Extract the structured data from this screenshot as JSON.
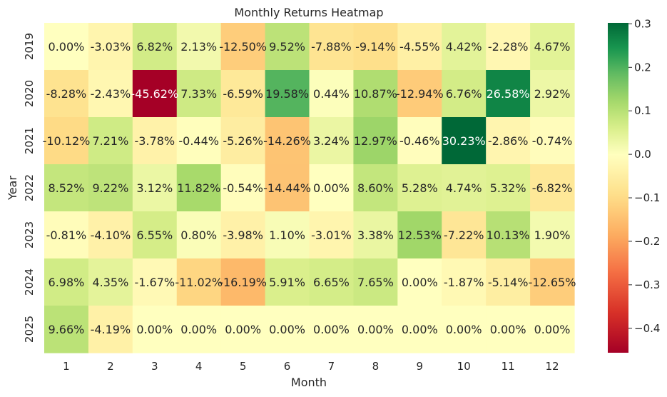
{
  "chart_data": {
    "type": "heatmap",
    "title": "Monthly Returns Heatmap",
    "xlabel": "Month",
    "ylabel": "Year",
    "x_categories": [
      "1",
      "2",
      "3",
      "4",
      "5",
      "6",
      "7",
      "8",
      "9",
      "10",
      "11",
      "12"
    ],
    "y_categories": [
      "2019",
      "2020",
      "2021",
      "2022",
      "2023",
      "2024",
      "2025"
    ],
    "values": [
      [
        0.0,
        -0.0303,
        0.0682,
        0.0213,
        -0.125,
        0.0952,
        -0.0788,
        -0.0914,
        -0.0455,
        0.0442,
        -0.0228,
        0.0467
      ],
      [
        -0.0828,
        -0.0243,
        -0.4562,
        0.0733,
        -0.0659,
        0.1958,
        0.0044,
        0.1087,
        -0.1294,
        0.0676,
        0.2658,
        0.0292
      ],
      [
        -0.1012,
        0.0721,
        -0.0378,
        -0.0044,
        -0.0526,
        -0.1426,
        0.0324,
        0.1297,
        -0.0046,
        0.3023,
        -0.0286,
        -0.0074
      ],
      [
        0.0852,
        0.0922,
        0.0312,
        0.1182,
        -0.0054,
        -0.1444,
        0.0,
        0.086,
        0.0528,
        0.0474,
        0.0532,
        -0.0682
      ],
      [
        -0.0081,
        -0.041,
        0.0655,
        0.008,
        -0.0398,
        0.011,
        -0.0301,
        0.0338,
        0.1253,
        -0.0722,
        0.1013,
        0.019
      ],
      [
        0.0698,
        0.0435,
        -0.0167,
        -0.1102,
        -0.1619,
        0.0591,
        0.0665,
        0.0765,
        0.0,
        -0.0187,
        -0.0514,
        -0.1265
      ],
      [
        0.0966,
        -0.0419,
        0.0,
        0.0,
        0.0,
        0.0,
        0.0,
        0.0,
        0.0,
        0.0,
        0.0,
        0.0
      ]
    ],
    "labels": [
      [
        "0.00%",
        "-3.03%",
        "6.82%",
        "2.13%",
        "-12.50%",
        "9.52%",
        "-7.88%",
        "-9.14%",
        "-4.55%",
        "4.42%",
        "-2.28%",
        "4.67%"
      ],
      [
        "-8.28%",
        "-2.43%",
        "-45.62%",
        "7.33%",
        "-6.59%",
        "19.58%",
        "0.44%",
        "10.87%",
        "-12.94%",
        "6.76%",
        "26.58%",
        "2.92%"
      ],
      [
        "-10.12%",
        "7.21%",
        "-3.78%",
        "-0.44%",
        "-5.26%",
        "-14.26%",
        "3.24%",
        "12.97%",
        "-0.46%",
        "30.23%",
        "-2.86%",
        "-0.74%"
      ],
      [
        "8.52%",
        "9.22%",
        "3.12%",
        "11.82%",
        "-0.54%",
        "-14.44%",
        "0.00%",
        "8.60%",
        "5.28%",
        "4.74%",
        "5.32%",
        "-6.82%"
      ],
      [
        "-0.81%",
        "-4.10%",
        "6.55%",
        "0.80%",
        "-3.98%",
        "1.10%",
        "-3.01%",
        "3.38%",
        "12.53%",
        "-7.22%",
        "10.13%",
        "1.90%"
      ],
      [
        "6.98%",
        "4.35%",
        "-1.67%",
        "-11.02%",
        "-16.19%",
        "5.91%",
        "6.65%",
        "7.65%",
        "0.00%",
        "-1.87%",
        "-5.14%",
        "-12.65%"
      ],
      [
        "9.66%",
        "-4.19%",
        "0.00%",
        "0.00%",
        "0.00%",
        "0.00%",
        "0.00%",
        "0.00%",
        "0.00%",
        "0.00%",
        "0.00%",
        "0.00%"
      ]
    ],
    "colormap": "RdYlGn",
    "vmin": -0.4562,
    "vmax": 0.3023,
    "colorbar": {
      "ticks": [
        0.3,
        0.2,
        0.1,
        0.0,
        -0.1,
        -0.2,
        -0.3,
        -0.4
      ],
      "tick_labels": [
        "0.3",
        "0.2",
        "0.1",
        "0.0",
        "−0.1",
        "−0.2",
        "−0.3",
        "−0.4"
      ]
    }
  }
}
